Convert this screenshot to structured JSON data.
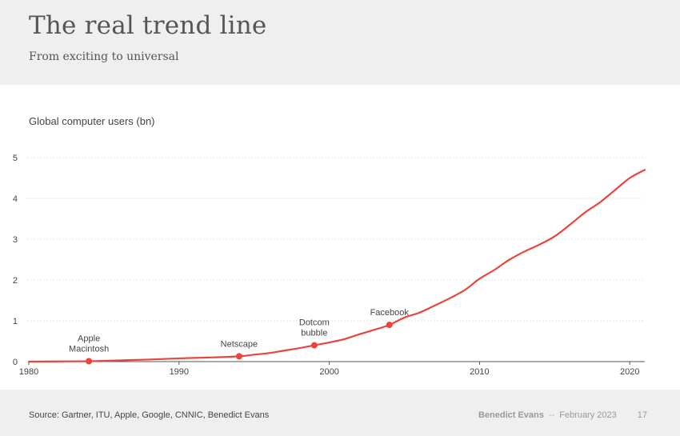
{
  "header": {
    "title": "The real trend line",
    "subtitle": "From exciting to universal"
  },
  "footer": {
    "source": "Source: Gartner, ITU, Apple, Google, CNNIC, Benedict Evans",
    "author": "Benedict Evans",
    "separator": "--",
    "date": "February 2023",
    "page": "17"
  },
  "colors": {
    "line": "#e8453c",
    "grid": "#d9d9d9",
    "axis": "#555555",
    "text": "#444444",
    "band": "#efefef"
  },
  "chart_data": {
    "type": "line",
    "title": "Global computer users (bn)",
    "xlabel": "",
    "ylabel": "",
    "xlim": [
      1980,
      2021
    ],
    "ylim": [
      0,
      5
    ],
    "x_ticks": [
      1980,
      1990,
      2000,
      2010,
      2020
    ],
    "y_ticks": [
      0,
      1,
      2,
      3,
      4,
      5
    ],
    "grid": "horizontal dotted",
    "legend": "none",
    "series": [
      {
        "x": [
          1980,
          1982,
          1984,
          1986,
          1988,
          1990,
          1992,
          1994,
          1995,
          1996,
          1997,
          1998,
          1999,
          2000,
          2001,
          2002,
          2003,
          2004,
          2005,
          2006,
          2007,
          2008,
          2009,
          2010,
          2011,
          2012,
          2013,
          2014,
          2015,
          2016,
          2017,
          2018,
          2019,
          2020,
          2021
        ],
        "y": [
          0.0,
          0.005,
          0.01,
          0.03,
          0.05,
          0.08,
          0.1,
          0.13,
          0.17,
          0.21,
          0.27,
          0.33,
          0.4,
          0.47,
          0.55,
          0.67,
          0.78,
          0.9,
          1.08,
          1.2,
          1.37,
          1.55,
          1.75,
          2.03,
          2.25,
          2.5,
          2.7,
          2.87,
          3.07,
          3.35,
          3.65,
          3.9,
          4.2,
          4.5,
          4.7
        ]
      }
    ],
    "annotations": [
      {
        "x": 1984,
        "y": 0.01,
        "label": [
          "Apple",
          "Macintosh"
        ]
      },
      {
        "x": 1994,
        "y": 0.13,
        "label": [
          "Netscape"
        ]
      },
      {
        "x": 1999,
        "y": 0.4,
        "label": [
          "Dotcom",
          "bubble"
        ]
      },
      {
        "x": 2004,
        "y": 0.9,
        "label": [
          "Facebook"
        ]
      }
    ]
  }
}
